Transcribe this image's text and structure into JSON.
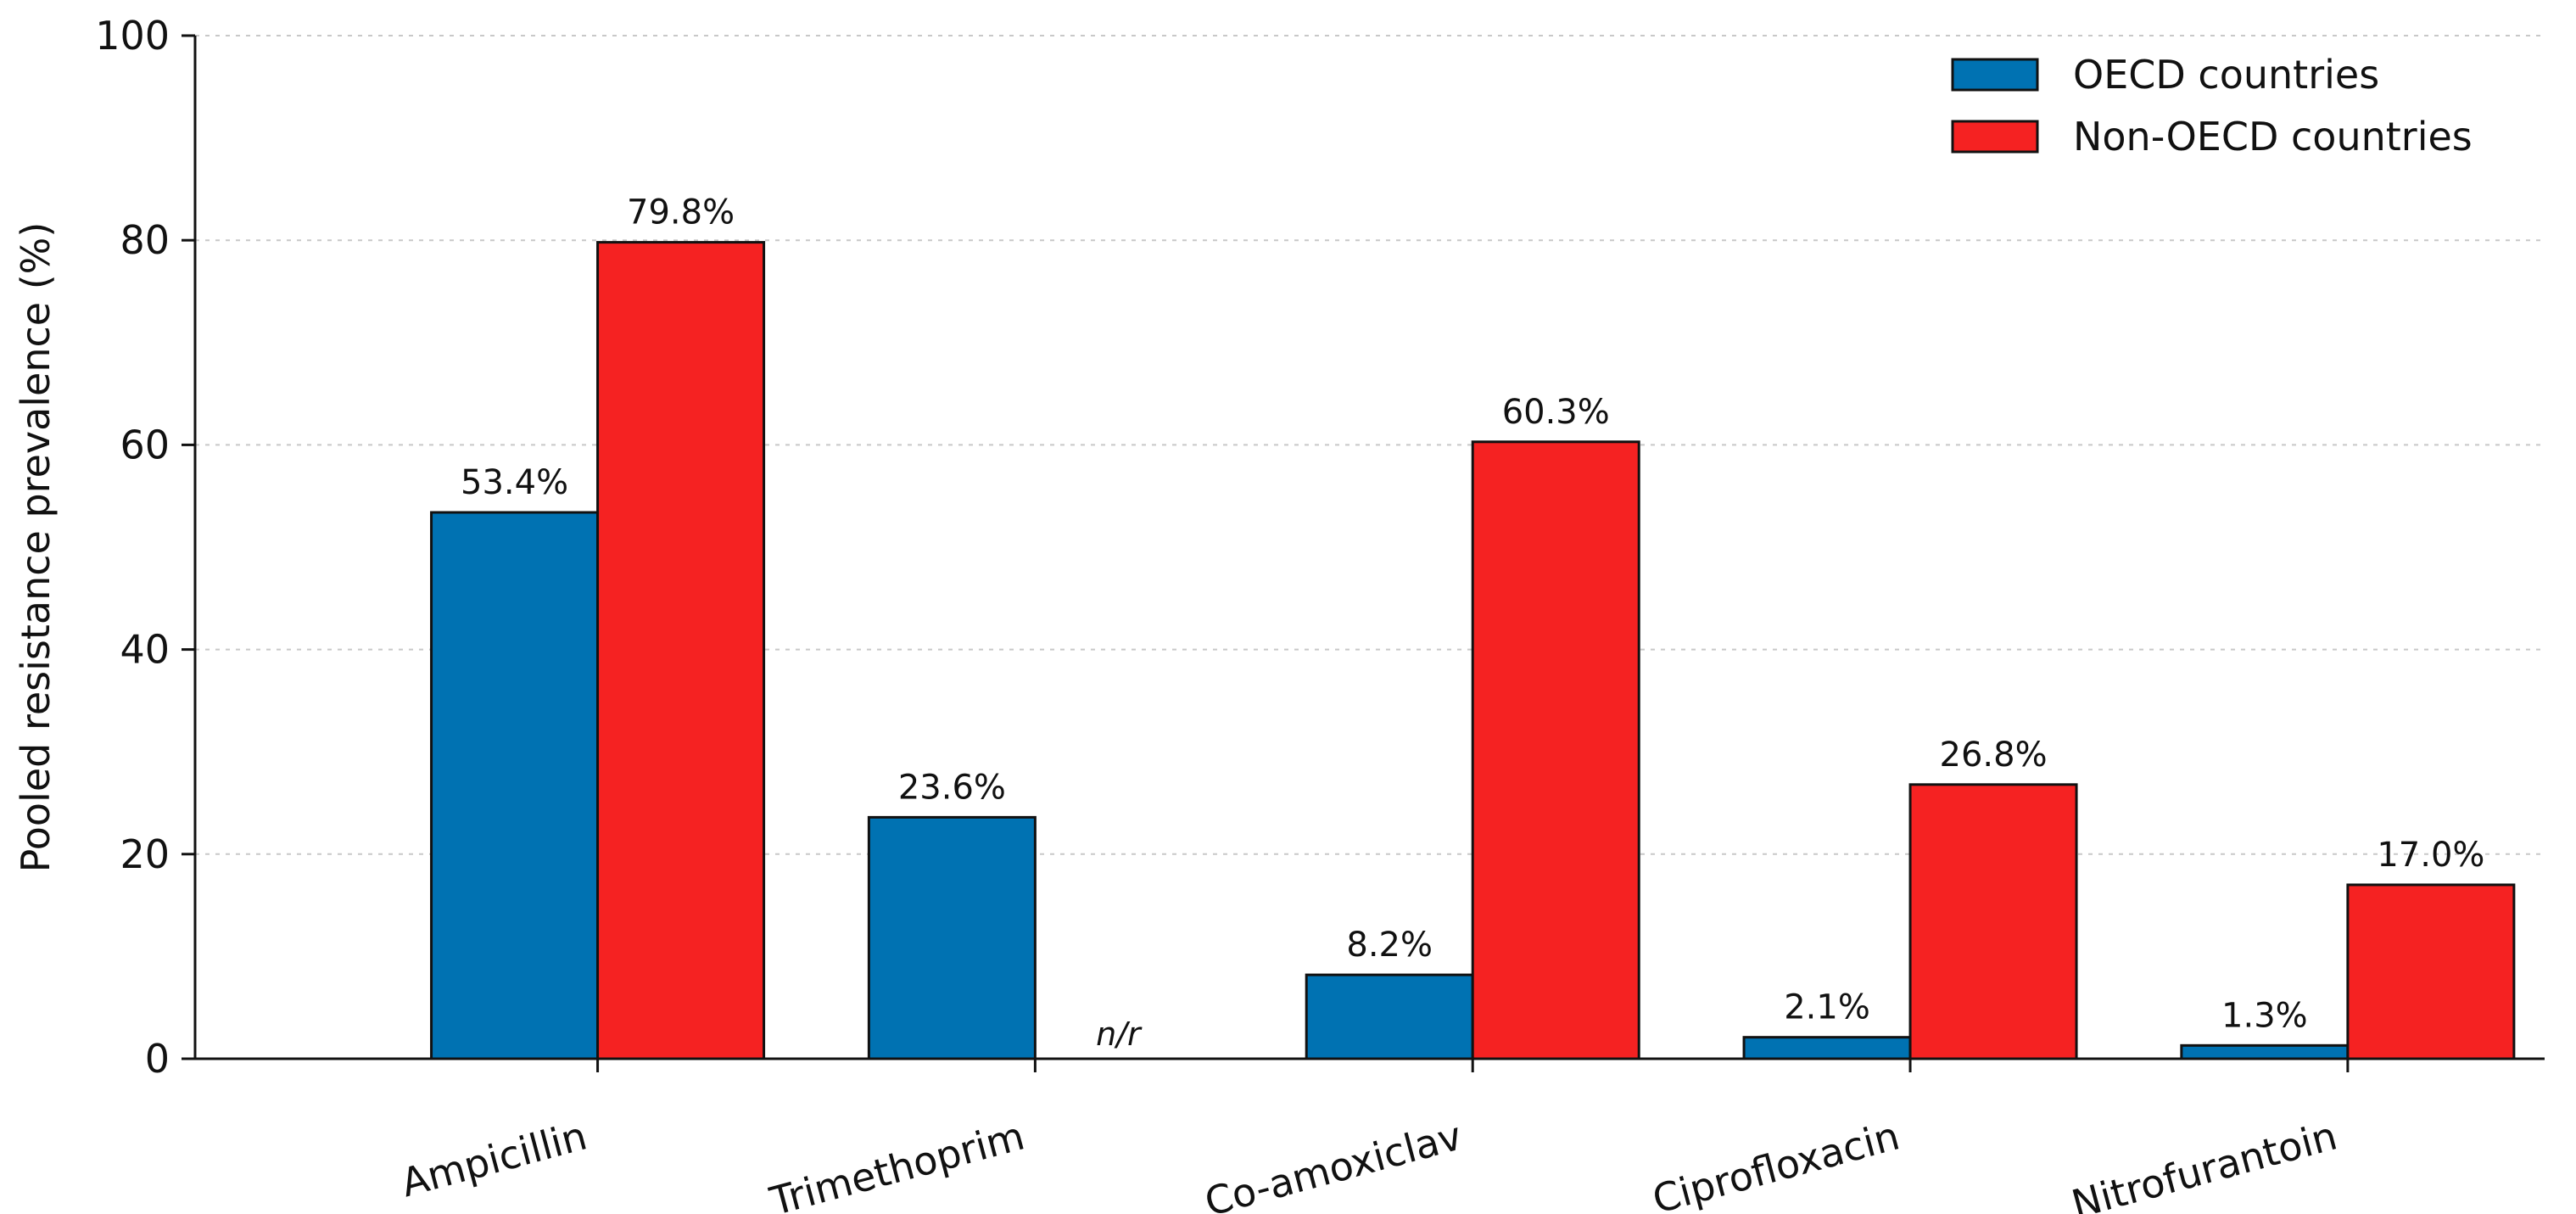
{
  "chart_data": {
    "type": "bar",
    "title": "",
    "xlabel": "",
    "ylabel": "Pooled resistance prevalence (%)",
    "ylim": [
      0,
      100
    ],
    "yticks": [
      0,
      20,
      40,
      60,
      80,
      100
    ],
    "grid": "horizontal dotted",
    "legend_position": "top-right",
    "categories": [
      "Ampicillin",
      "Trimethoprim",
      "Co-amoxiclav",
      "Ciprofloxacin",
      "Nitrofurantoin"
    ],
    "series": [
      {
        "name": "OECD countries",
        "color": "#0072b2",
        "values": [
          53.4,
          23.6,
          8.2,
          2.1,
          1.3
        ],
        "labels": [
          "53.4%",
          "23.6%",
          "8.2%",
          "2.1%",
          "1.3%"
        ]
      },
      {
        "name": "Non-OECD countries",
        "color": "#f52222",
        "values": [
          79.8,
          null,
          60.3,
          26.8,
          17.0
        ],
        "labels": [
          "79.8%",
          "n/r",
          "60.3%",
          "26.8%",
          "17.0%"
        ]
      }
    ]
  }
}
